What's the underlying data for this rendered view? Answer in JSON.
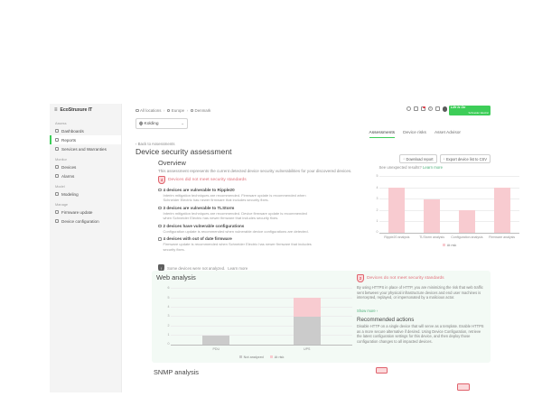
{
  "sidebar": {
    "logo_text": "EcoStruxure IT",
    "sections": [
      {
        "label": "Assess",
        "items": [
          {
            "label": "Dashboards"
          },
          {
            "label": "Reports"
          },
          {
            "label": "Services and Warranties"
          }
        ]
      },
      {
        "label": "Monitor",
        "items": [
          {
            "label": "Devices"
          },
          {
            "label": "Alarms"
          }
        ]
      },
      {
        "label": "Model",
        "items": [
          {
            "label": "Modeling"
          }
        ]
      },
      {
        "label": "Manage",
        "items": [
          {
            "label": "Firmware update"
          },
          {
            "label": "Device configuration"
          }
        ]
      }
    ]
  },
  "topbar": {
    "breadcrumbs": [
      {
        "label": "All locations"
      },
      {
        "label": "Europe"
      },
      {
        "label": "Denmark"
      }
    ],
    "separator": "›",
    "location_selector": {
      "value": "Kolding"
    },
    "icons": [
      "search",
      "grid",
      "bell",
      "help",
      "settings",
      "avatar"
    ],
    "brand": {
      "line1": "Life Is On",
      "line2": "Schneider Electric"
    }
  },
  "tabs": [
    {
      "label": "Assessments",
      "active": true
    },
    {
      "label": "Device risks",
      "active": false
    },
    {
      "label": "Asset Advisor",
      "active": false
    }
  ],
  "page": {
    "back_link": "‹ Back to Assessments",
    "title": "Device security assessment"
  },
  "overview": {
    "heading": "Overview",
    "description": "This assessment represents the current detected device security vulnerabilities for your discovered devices.",
    "download_button": "Download report",
    "export_button": "Export device list to CSV",
    "download_icon": "↓",
    "unexpected_text": "See unexpected results?",
    "unexpected_link": "Learn more",
    "risk_banner": {
      "count": "4",
      "text": "Devices did not meet security standards"
    },
    "findings": [
      {
        "title": "4 devices are vulnerable to Ripple20",
        "description": "Interim mitigation techniques are recommended. Firmware update is recommended when Schneider Electric has newer firmware that includes security fixes."
      },
      {
        "title": "3 devices are vulnerable to TLStorm",
        "description": "Interim mitigation techniques are recommended. Device firmware update is recommended when Schneider Electric has newer firmware that includes security fixes."
      },
      {
        "title": "2 devices have vulnerable configurations",
        "description": "Configuration update is recommended when vulnerable device configurations are detected."
      },
      {
        "title": "4 devices with out of date firmware",
        "description": "Firmware update is recommended when Schneider Electric has newer firmware that includes security fixes."
      }
    ],
    "not_analyzed_note": {
      "text": "Some devices were not analyzed.",
      "link": "Learn more"
    }
  },
  "web_analysis": {
    "heading": "Web analysis",
    "risk_banner": {
      "count": "2",
      "text": "Devices do not meet security standards"
    },
    "paragraph": "By using HTTPS in place of HTTP, you are minimizing the risk that web traffic sent between your physical infrastructure devices and end user machines is intercepted, replayed, or impersonated by a malicious actor.",
    "show_more_link": "Show more ›",
    "recommended_heading": "Recommended actions",
    "recommended_text": "Disable HTTP on a single device that will serve as a template. Enable HTTPS as a more secure alternative if desired. Using Device Configuration, retrieve the latest configuration settings for this device, and then deploy those configuration changes to all impacted devices."
  },
  "snmp": {
    "heading": "SNMP analysis"
  },
  "chart_data": {
    "overview": {
      "type": "bar",
      "categories": [
        "Ripple20 analysis",
        "TLStorm analysis",
        "Configuration analysis",
        "Firmware analysis"
      ],
      "series": [
        {
          "name": "At risk",
          "color": "#f8cbd0",
          "values": [
            4,
            3,
            2,
            4
          ]
        }
      ],
      "ylim": [
        0,
        5
      ],
      "yticks": [
        0,
        1,
        2,
        3,
        4,
        5
      ],
      "grid": true,
      "legend_position": "bottom"
    },
    "web": {
      "type": "stacked-bar",
      "categories": [
        "PDU",
        "UPS"
      ],
      "series": [
        {
          "name": "Not analyzed",
          "color": "#cbcbcb",
          "values": [
            1,
            3
          ]
        },
        {
          "name": "At risk",
          "color": "#f8cbd0",
          "values": [
            0,
            2
          ]
        }
      ],
      "ylim": [
        0,
        6
      ],
      "yticks": [
        0,
        1,
        2,
        3,
        4,
        5,
        6
      ],
      "grid": true,
      "legend_position": "bottom"
    }
  },
  "colors": {
    "accent_green": "#3dcd58",
    "link_green": "#4caf78",
    "risk_red": "#e2737d",
    "bar_pink": "#f8cbd0",
    "bar_gray": "#cbcbcb"
  }
}
